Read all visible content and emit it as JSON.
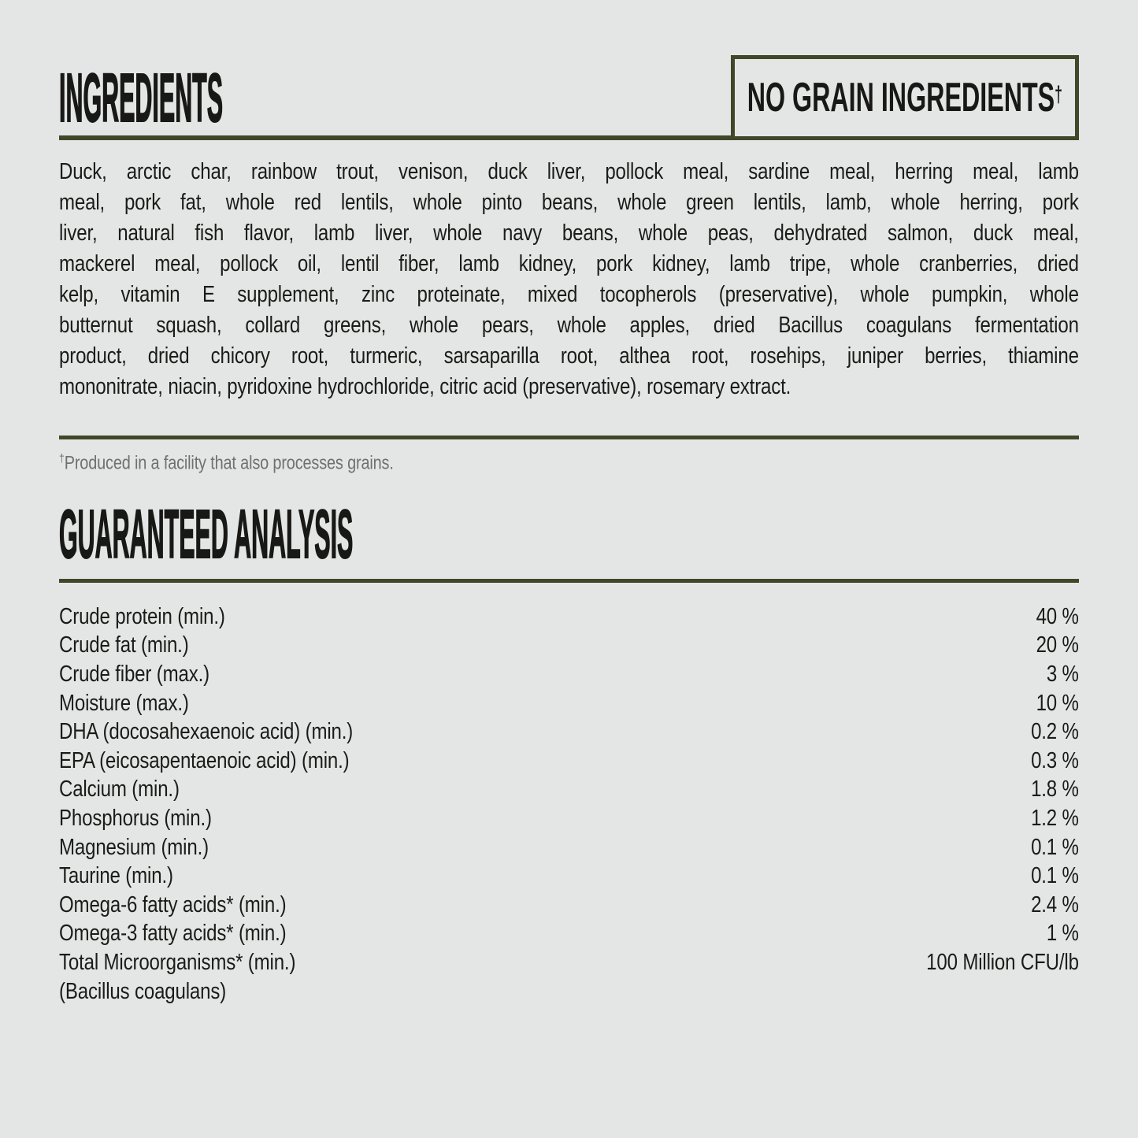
{
  "page": {
    "background_color": "#e4e6e5",
    "accent_color": "#404829",
    "text_color": "#1b1b19",
    "footnote_color": "#6e726e"
  },
  "ingredients": {
    "title": "INGREDIENTS",
    "badge_label": "NO GRAIN INGREDIENTS",
    "badge_superscript": "†",
    "lines": [
      "Duck, arctic char, rainbow trout, venison, duck liver, pollock meal, sardine meal, herring meal, lamb",
      "meal, pork fat, whole red lentils, whole pinto beans, whole green lentils, lamb, whole herring, pork",
      "liver, natural fish flavor, lamb liver, whole navy beans, whole peas, dehydrated salmon, duck meal,",
      "mackerel meal, pollock oil, lentil fiber, lamb kidney, pork kidney, lamb tripe, whole cranberries, dried",
      "kelp, vitamin E supplement, zinc proteinate, mixed tocopherols (preservative), whole pumpkin, whole",
      "butternut squash, collard greens, whole pears, whole apples, dried Bacillus coagulans fermentation",
      "product, dried chicory root, turmeric, sarsaparilla root, althea root, rosehips, juniper berries, thiamine",
      "mononitrate, niacin, pyridoxine hydrochloride, citric acid (preservative), rosemary extract."
    ],
    "footnote_marker": "†",
    "footnote_text": "Produced in a facility that also processes grains."
  },
  "analysis": {
    "title": "GUARANTEED ANALYSIS",
    "rows": [
      {
        "label": "Crude protein (min.)",
        "value": "40 %"
      },
      {
        "label": "Crude fat (min.)",
        "value": "20 %"
      },
      {
        "label": "Crude fiber (max.)",
        "value": "3 %"
      },
      {
        "label": "Moisture (max.)",
        "value": "10 %"
      },
      {
        "label": "DHA (docosahexaenoic acid) (min.)",
        "value": "0.2 %"
      },
      {
        "label": "EPA (eicosapentaenoic acid) (min.)",
        "value": "0.3 %"
      },
      {
        "label": "Calcium (min.)",
        "value": "1.8 %"
      },
      {
        "label": "Phosphorus (min.)",
        "value": "1.2 %"
      },
      {
        "label": "Magnesium (min.)",
        "value": "0.1 %"
      },
      {
        "label": "Taurine (min.)",
        "value": "0.1 %"
      },
      {
        "label": "Omega-6 fatty acids* (min.)",
        "value": "2.4 %"
      },
      {
        "label": "Omega-3 fatty acids* (min.)",
        "value": "1 %"
      },
      {
        "label": "Total Microorganisms* (min.)",
        "value": "100 Million CFU/lb"
      },
      {
        "label": "(Bacillus coagulans)",
        "value": ""
      }
    ]
  }
}
